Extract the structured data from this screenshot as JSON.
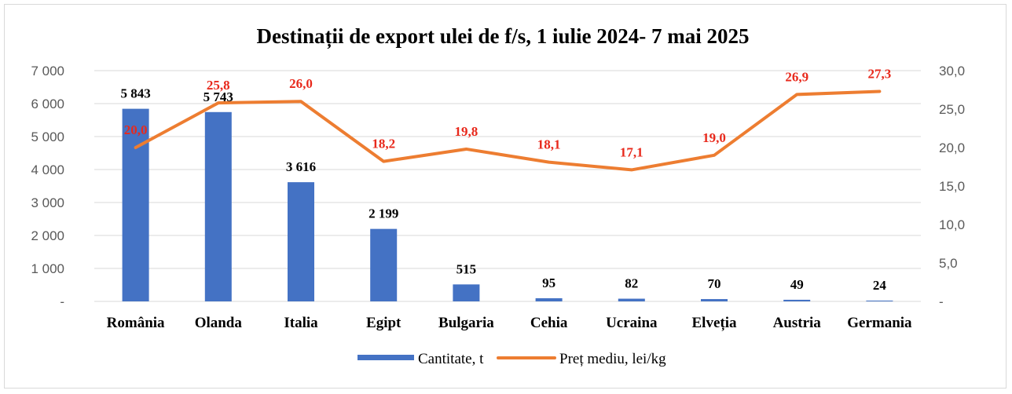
{
  "chart_data": {
    "type": "bar",
    "title": "Destinații de export ulei de f/s, 1 iulie 2024- 7 mai 2025",
    "categories": [
      "România",
      "Olanda",
      "Italia",
      "Egipt",
      "Bulgaria",
      "Cehia",
      "Ucraina",
      "Elveția",
      "Austria",
      "Germania"
    ],
    "series": [
      {
        "name": "Cantitate, t",
        "type": "bar",
        "axis": "left",
        "color": "#4472c4",
        "values": [
          5843,
          5743,
          3616,
          2199,
          515,
          95,
          82,
          70,
          49,
          24
        ],
        "labels": [
          "5 843",
          "5 743",
          "3 616",
          "2 199",
          "515",
          "95",
          "82",
          "70",
          "49",
          "24"
        ]
      },
      {
        "name": "Preț mediu, lei/kg",
        "type": "line",
        "axis": "right",
        "color": "#ed7d31",
        "values": [
          20.0,
          25.8,
          26.0,
          18.2,
          19.8,
          18.1,
          17.1,
          19.0,
          26.9,
          27.3
        ],
        "labels": [
          "20,0",
          "25,8",
          "26,0",
          "18,2",
          "19,8",
          "18,1",
          "17,1",
          "19,0",
          "26,9",
          "27,3"
        ]
      }
    ],
    "ylim": [
      0,
      7000
    ],
    "y2lim": [
      0,
      30
    ],
    "y_ticks": [
      "-",
      "1 000",
      "2 000",
      "3 000",
      "4 000",
      "5 000",
      "6 000",
      "7 000"
    ],
    "y2_ticks": [
      "-",
      "5,0",
      "10,0",
      "15,0",
      "20,0",
      "25,0",
      "30,0"
    ],
    "grid": true,
    "legend_position": "bottom",
    "line_label_color": "#e8291c"
  }
}
